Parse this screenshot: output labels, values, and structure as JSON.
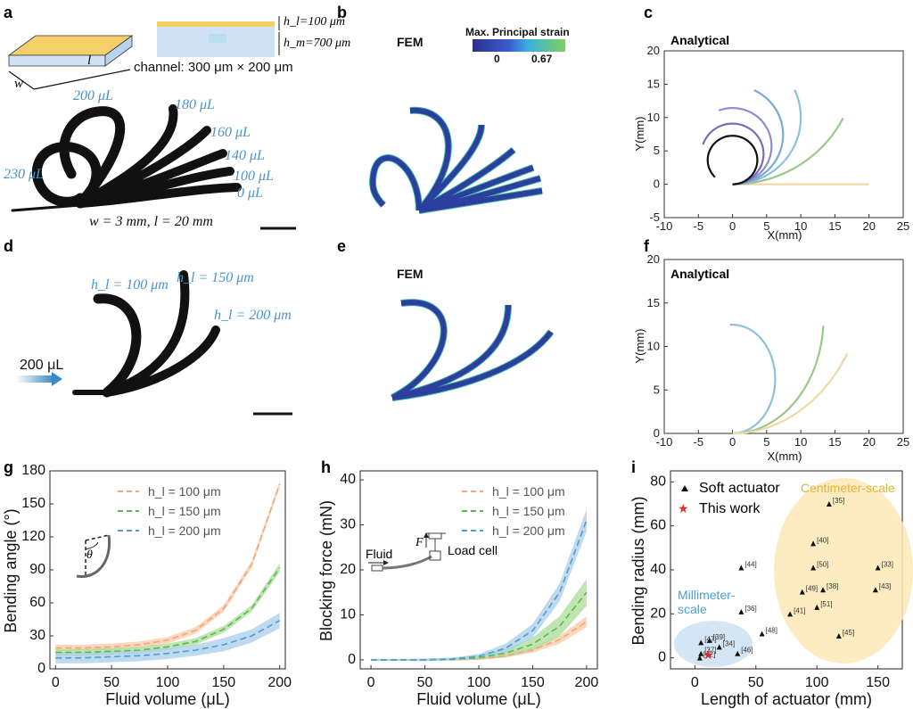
{
  "panel_labels": {
    "a": "a",
    "b": "b",
    "c": "c",
    "d": "d",
    "e": "e",
    "f": "f",
    "g": "g",
    "h": "h",
    "i": "i"
  },
  "panel_a": {
    "w_label": "w",
    "l_label": "l",
    "hl_label": "h_l=100 μm",
    "hm_label": "h_m=700 μm",
    "channel_label": "channel: 300 μm × 200 μm",
    "volumes": [
      "200 μL",
      "180 μL",
      "160 μL",
      "140 μL",
      "100 μL",
      "0 μL",
      "230 μL"
    ],
    "dims_label": "w = 3 mm, l = 20 mm"
  },
  "panel_b": {
    "fem_label": "FEM",
    "colorbar_title": "Max. Principal strain",
    "colorbar_min": "0",
    "colorbar_max": "0.67"
  },
  "panel_d": {
    "hl_labels": [
      "h_l = 100 μm",
      "h_l = 150 μm",
      "h_l = 200 μm"
    ],
    "input_label": "200 μL"
  },
  "panel_e": {
    "fem_label": "FEM"
  },
  "colors": {
    "black_actuator": "#111111",
    "fem_blue": "#2c3f9f",
    "fem_edge": "#3fb6a0",
    "band_orange": "#f9c9a8",
    "band_green": "#a9dc9a",
    "band_blue": "#a9cde8",
    "line_orange": "#f3a57a",
    "line_green": "#5cb84b",
    "line_blue": "#4a9fd5"
  },
  "chart_data": [
    {
      "id": "c",
      "type": "line",
      "title": "Analytical",
      "xlabel": "X(mm)",
      "ylabel": "Y(mm)",
      "xlim": [
        -10,
        25
      ],
      "ylim": [
        -5,
        20
      ],
      "xticks": [
        "-10",
        "-5",
        "0",
        "5",
        "10",
        "15",
        "20",
        "25"
      ],
      "yticks": [
        "-5",
        "0",
        "5",
        "10",
        "15",
        "20"
      ],
      "series": [
        {
          "name": "0 μL",
          "color": "#f0d9a8",
          "curvature": 0
        },
        {
          "name": "100 μL",
          "color": "#9bc78a",
          "curvature": 0.055
        },
        {
          "name": "140 μL",
          "color": "#8fc0dc",
          "curvature": 0.1
        },
        {
          "name": "160 μL",
          "color": "#7aa8d8",
          "curvature": 0.135
        },
        {
          "name": "180 μL",
          "color": "#8a8fd0",
          "curvature": 0.175
        },
        {
          "name": "200 μL",
          "color": "#7a6bb8",
          "curvature": 0.22
        },
        {
          "name": "230 μL",
          "color": "#111111",
          "curvature": 0.275
        }
      ],
      "arc_length_mm": 20
    },
    {
      "id": "f",
      "type": "line",
      "title": "Analytical",
      "xlabel": "X(mm)",
      "ylabel": "Y(mm)",
      "xlim": [
        -10,
        25
      ],
      "ylim": [
        0,
        20
      ],
      "xticks": [
        "-10",
        "-5",
        "0",
        "5",
        "10",
        "15",
        "20",
        "25"
      ],
      "yticks": [
        "0",
        "5",
        "10",
        "15",
        "20"
      ],
      "series": [
        {
          "name": "h_l = 100 μm",
          "color": "#8fc0dc",
          "curvature": 0.16
        },
        {
          "name": "h_l = 150 μm",
          "color": "#9bc78a",
          "curvature": 0.075
        },
        {
          "name": "h_l = 200 μm",
          "color": "#f0d9a8",
          "curvature": 0.05
        }
      ],
      "arc_length_mm": 20
    },
    {
      "id": "g",
      "type": "area",
      "xlabel": "Fluid volume (μL)",
      "ylabel": "Bending angle (°)",
      "xlim": [
        -5,
        205
      ],
      "ylim": [
        0,
        180
      ],
      "xticks": [
        "0",
        "50",
        "100",
        "150",
        "200"
      ],
      "yticks": [
        "0",
        "30",
        "60",
        "90",
        "120",
        "150",
        "180"
      ],
      "x": [
        0,
        25,
        50,
        75,
        100,
        125,
        150,
        175,
        200
      ],
      "series": [
        {
          "name": "h_l = 100 μm",
          "color": "#f3a57a",
          "band": "#f9c9a8",
          "values": [
            19,
            19,
            20,
            22,
            26,
            35,
            55,
            95,
            168
          ],
          "err": [
            3,
            3,
            3,
            3,
            3,
            3,
            3,
            3,
            3
          ]
        },
        {
          "name": "h_l = 150 μm",
          "color": "#5cb84b",
          "band": "#a9dc9a",
          "values": [
            15,
            15,
            16,
            17,
            20,
            25,
            36,
            55,
            92
          ],
          "err": [
            3,
            3,
            3,
            3,
            3,
            3,
            3,
            3,
            4
          ]
        },
        {
          "name": "h_l = 200 μm",
          "color": "#4a9fd5",
          "band": "#a9cde8",
          "values": [
            10,
            10,
            11,
            12,
            14,
            17,
            22,
            30,
            44
          ],
          "err": [
            5,
            5,
            5,
            5,
            5,
            5,
            6,
            6,
            7
          ]
        }
      ],
      "legend": [
        "h_l = 100 μm",
        "h_l = 150 μm",
        "h_l = 200 μm"
      ],
      "inset_label": "θ"
    },
    {
      "id": "h",
      "type": "area",
      "xlabel": "Fluid volume (μL)",
      "ylabel": "Blocking force (mN)",
      "xlim": [
        -10,
        210
      ],
      "ylim": [
        -2,
        42
      ],
      "xticks": [
        "0",
        "50",
        "100",
        "150",
        "200"
      ],
      "yticks": [
        "0",
        "10",
        "20",
        "30",
        "40"
      ],
      "x": [
        0,
        25,
        50,
        75,
        100,
        125,
        150,
        175,
        200
      ],
      "series": [
        {
          "name": "h_l = 100 μm",
          "color": "#f3a57a",
          "band": "#f9c9a8",
          "values": [
            0,
            0,
            0,
            0.1,
            0.3,
            0.9,
            2.2,
            4.5,
            8.5
          ],
          "err": [
            0.2,
            0.2,
            0.2,
            0.2,
            0.3,
            0.4,
            0.6,
            0.9,
            1.2
          ]
        },
        {
          "name": "h_l = 150 μm",
          "color": "#5cb84b",
          "band": "#a9dc9a",
          "values": [
            0,
            0,
            0,
            0.1,
            0.5,
            1.5,
            3.5,
            7.5,
            15
          ],
          "err": [
            0.2,
            0.2,
            0.2,
            0.3,
            0.5,
            0.9,
            1.5,
            2.2,
            3
          ]
        },
        {
          "name": "h_l = 200 μm",
          "color": "#4a9fd5",
          "band": "#a9cde8",
          "values": [
            0,
            0,
            0,
            0.2,
            0.8,
            2.6,
            6.5,
            15,
            31
          ],
          "err": [
            0.2,
            0.2,
            0.3,
            0.3,
            0.5,
            1,
            1.5,
            2,
            2.5
          ]
        }
      ],
      "legend": [
        "h_l = 100 μm",
        "h_l = 150 μm",
        "h_l = 200 μm"
      ],
      "inset_labels": {
        "fluid": "Fluid",
        "force": "F",
        "loadcell": "Load cell"
      }
    },
    {
      "id": "i",
      "type": "scatter",
      "xlabel": "Length of actuator (mm)",
      "ylabel": "Bending radius (mm)",
      "xlim": [
        -20,
        170
      ],
      "ylim": [
        -5,
        85
      ],
      "xticks": [
        "0",
        "50",
        "100",
        "150"
      ],
      "yticks": [
        "0",
        "20",
        "40",
        "60",
        "80"
      ],
      "legend": [
        "Soft actuator",
        "This work"
      ],
      "region_labels": {
        "mm": [
          "Millimeter-",
          "scale"
        ],
        "cm": "Centimeter-scale"
      },
      "points": [
        {
          "x": 110,
          "y": 70,
          "ref": "[35]"
        },
        {
          "x": 97,
          "y": 52,
          "ref": "[40]"
        },
        {
          "x": 38,
          "y": 41,
          "ref": "[44]"
        },
        {
          "x": 97,
          "y": 41,
          "ref": "[50]"
        },
        {
          "x": 150,
          "y": 41,
          "ref": "[33]"
        },
        {
          "x": 88,
          "y": 30,
          "ref": "[49]"
        },
        {
          "x": 105,
          "y": 31,
          "ref": "[38]"
        },
        {
          "x": 148,
          "y": 31,
          "ref": "[43]"
        },
        {
          "x": 38,
          "y": 21,
          "ref": "[36]"
        },
        {
          "x": 78,
          "y": 20,
          "ref": "[41]"
        },
        {
          "x": 100,
          "y": 23,
          "ref": "[51]"
        },
        {
          "x": 55,
          "y": 11,
          "ref": "[48]"
        },
        {
          "x": 118,
          "y": 10,
          "ref": "[45]"
        },
        {
          "x": 12,
          "y": 8,
          "ref": "[39]"
        },
        {
          "x": 5,
          "y": 7,
          "ref": "[47]"
        },
        {
          "x": 20,
          "y": 5,
          "ref": "[34]"
        },
        {
          "x": 5,
          "y": 2,
          "ref": "[37]"
        },
        {
          "x": 35,
          "y": 2,
          "ref": "[46]"
        },
        {
          "x": 4,
          "y": 0,
          "ref": "[42]"
        }
      ],
      "this_work": {
        "x": 10,
        "y": 1.5
      }
    }
  ]
}
